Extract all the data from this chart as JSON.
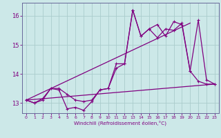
{
  "xlabel": "Windchill (Refroidissement éolien,°C)",
  "background_color": "#cce8e8",
  "line_color": "#800080",
  "grid_color": "#aacccc",
  "xlim": [
    -0.5,
    23.5
  ],
  "ylim": [
    12.65,
    16.45
  ],
  "yticks": [
    13,
    14,
    15,
    16
  ],
  "xticks": [
    0,
    1,
    2,
    3,
    4,
    5,
    6,
    7,
    8,
    9,
    10,
    11,
    12,
    13,
    14,
    15,
    16,
    17,
    18,
    19,
    20,
    21,
    22,
    23
  ],
  "series1_x": [
    0,
    1,
    2,
    3,
    4,
    5,
    6,
    7,
    8,
    9,
    10,
    11,
    12,
    13,
    14,
    15,
    16,
    17,
    18,
    19,
    20,
    21,
    22,
    23
  ],
  "series1_y": [
    13.1,
    13.0,
    13.15,
    13.5,
    13.45,
    12.8,
    12.85,
    12.75,
    13.05,
    13.45,
    13.5,
    14.2,
    14.35,
    16.2,
    15.3,
    15.55,
    15.25,
    15.55,
    15.5,
    15.75,
    14.1,
    13.75,
    13.65,
    13.65
  ],
  "series2_x": [
    0,
    1,
    2,
    3,
    4,
    5,
    6,
    7,
    8,
    9,
    10,
    11,
    12,
    13,
    14,
    15,
    16,
    17,
    18,
    19,
    20,
    21,
    22,
    23
  ],
  "series2_y": [
    13.1,
    13.0,
    13.1,
    13.5,
    13.5,
    13.3,
    13.1,
    13.05,
    13.1,
    13.45,
    13.5,
    14.35,
    14.35,
    16.2,
    15.3,
    15.55,
    15.7,
    15.3,
    15.8,
    15.7,
    14.1,
    15.85,
    13.8,
    13.65
  ],
  "series3_x": [
    0,
    23
  ],
  "series3_y": [
    13.1,
    13.65
  ],
  "series4_x": [
    0,
    20
  ],
  "series4_y": [
    13.1,
    15.75
  ]
}
